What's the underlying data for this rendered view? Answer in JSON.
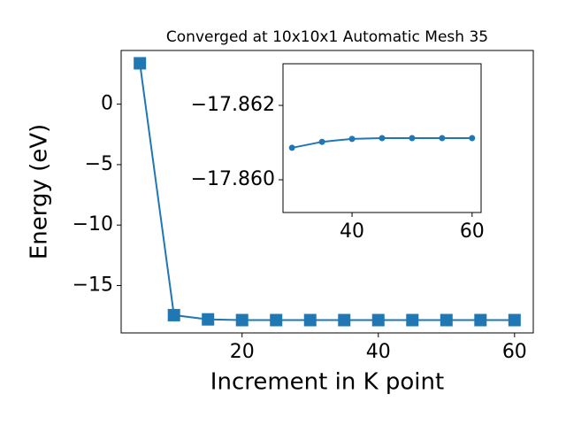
{
  "chart_data": [
    {
      "type": "line",
      "title": "Converged at 10x10x1 Automatic Mesh 35",
      "xlabel": "Increment in K point",
      "ylabel": "Energy (eV)",
      "x": [
        5,
        10,
        15,
        20,
        25,
        30,
        35,
        40,
        45,
        50,
        55,
        60
      ],
      "values": [
        3.38,
        -17.45,
        -17.8,
        -17.86,
        -17.86,
        -17.86,
        -17.86,
        -17.86,
        -17.86,
        -17.86,
        -17.86,
        -17.86
      ],
      "color": "#1f77b4",
      "marker": "square",
      "xlim": [
        2.25,
        62.75
      ],
      "xticks": [
        20,
        40,
        60
      ],
      "ylim": [
        -18.92,
        4.44
      ],
      "yticks": [
        {
          "value": -15,
          "label": "−15"
        },
        {
          "value": -10,
          "label": "−10"
        },
        {
          "value": -5,
          "label": "−5"
        },
        0
      ]
    },
    {
      "type": "line",
      "x": [
        30,
        35,
        40,
        45,
        50,
        55,
        60
      ],
      "values": [
        -17.86086,
        -17.86102,
        -17.8611,
        -17.86112,
        -17.86112,
        -17.86112,
        -17.86112
      ],
      "color": "#1f77b4",
      "marker": "circle",
      "xlim": [
        28.5,
        61.5
      ],
      "xticks": [
        40,
        60
      ],
      "ylim": [
        -17.85912,
        -17.86312
      ],
      "yticks": [
        {
          "value": -17.862,
          "label": "−17.862"
        },
        {
          "value": -17.86,
          "label": "−17.860"
        }
      ]
    }
  ]
}
